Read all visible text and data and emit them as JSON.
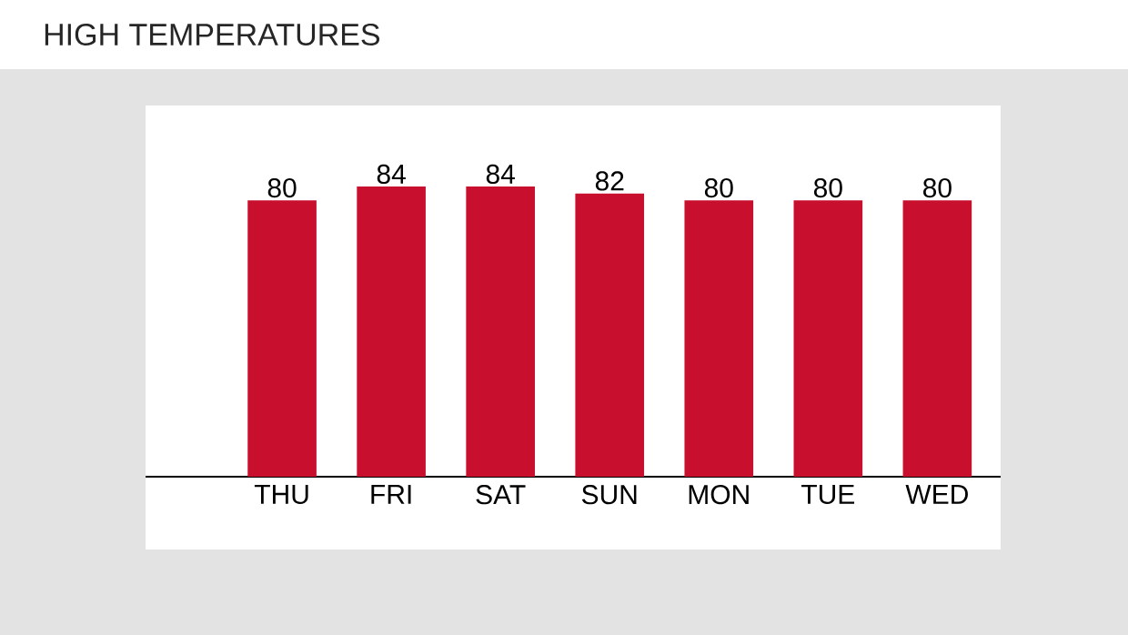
{
  "chart_data": {
    "type": "bar",
    "title": "HIGH TEMPERATURES",
    "categories": [
      "THU",
      "FRI",
      "SAT",
      "SUN",
      "MON",
      "TUE",
      "WED"
    ],
    "values": [
      80,
      84,
      84,
      82,
      80,
      80,
      80
    ],
    "color": "#c8102e",
    "data_labels": true,
    "tick_labels": "x"
  }
}
